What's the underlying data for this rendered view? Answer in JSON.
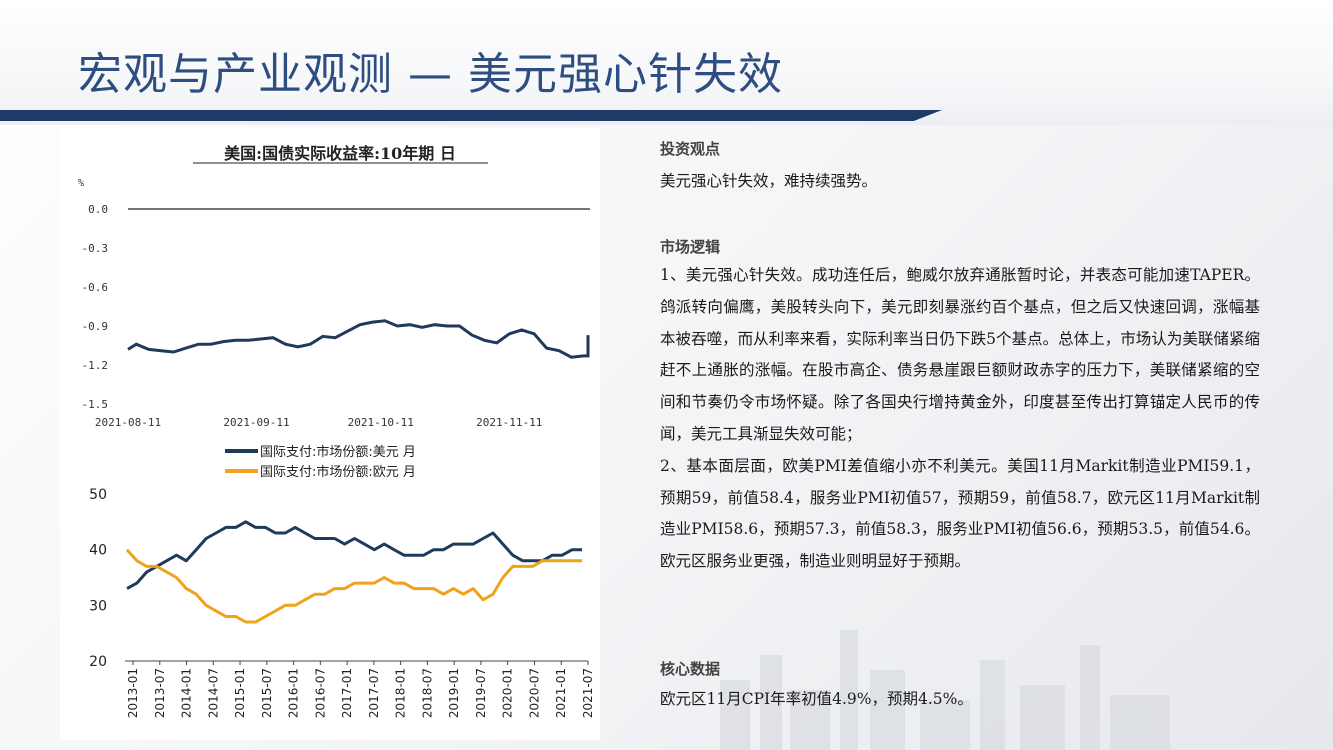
{
  "page": {
    "title": "宏观与产业观测 — 美元强心针失效"
  },
  "right": {
    "view_heading": "投资观点",
    "view_text": "美元强心针失效，难持续强势。",
    "logic_heading": "市场逻辑",
    "logic_p1": "1、美元强心针失效。成功连任后，鲍威尔放弃通胀暂时论，并表态可能加速TAPER。鸽派转向偏鹰，美股转头向下，美元即刻暴涨约百个基点，但之后又快速回调，涨幅基本被吞噬，而从利率来看，实际利率当日仍下跌5个基点。总体上，市场认为美联储紧缩赶不上通胀的涨幅。在股市高企、债务悬崖跟巨额财政赤字的压力下，美联储紧缩的空间和节奏仍令市场怀疑。除了各国央行增持黄金外，印度甚至传出打算锚定人民币的传闻，美元工具渐显失效可能；",
    "logic_p2": "2、基本面层面，欧美PMI差值缩小亦不利美元。美国11月Markit制造业PMI59.1，预期59，前值58.4，服务业PMI初值57，预期59，前值58.7，欧元区11月Markit制造业PMI58.6，预期57.3，前值58.3，服务业PMI初值56.6，预期53.5，前值54.6。欧元区服务业更强，制造业则明显好于预期。",
    "core_heading": "核心数据",
    "core_text": "欧元区11月CPI年率初值4.9%，预期4.5%。"
  },
  "colors": {
    "title": "#2e4e82",
    "rule": "#1f3a66",
    "usd_line": "#1f3a5c",
    "eur_line": "#f0a21a"
  },
  "chart_data": [
    {
      "type": "line",
      "title": "美国:国债实际收益率:10年期 日",
      "unit": "%",
      "x_ticks": [
        "2021-08-11",
        "2021-09-11",
        "2021-10-11",
        "2021-11-11"
      ],
      "y_ticks": [
        "0.0",
        "-0.3",
        "-0.6",
        "-0.9",
        "-1.2",
        "-1.5"
      ],
      "ylim": [
        -1.5,
        0.0
      ],
      "x_date_range": [
        "2021-08-11",
        "2021-11-30"
      ],
      "series": [
        {
          "points": [
            [
              "2021-08-11",
              -1.08
            ],
            [
              "2021-08-13",
              -1.04
            ],
            [
              "2021-08-16",
              -1.08
            ],
            [
              "2021-08-19",
              -1.09
            ],
            [
              "2021-08-22",
              -1.1
            ],
            [
              "2021-08-25",
              -1.07
            ],
            [
              "2021-08-28",
              -1.04
            ],
            [
              "2021-08-31",
              -1.04
            ],
            [
              "2021-09-03",
              -1.02
            ],
            [
              "2021-09-06",
              -1.01
            ],
            [
              "2021-09-09",
              -1.01
            ],
            [
              "2021-09-12",
              -1.0
            ],
            [
              "2021-09-15",
              -0.99
            ],
            [
              "2021-09-18",
              -1.04
            ],
            [
              "2021-09-21",
              -1.06
            ],
            [
              "2021-09-24",
              -1.04
            ],
            [
              "2021-09-27",
              -0.98
            ],
            [
              "2021-09-30",
              -0.99
            ],
            [
              "2021-10-03",
              -0.94
            ],
            [
              "2021-10-06",
              -0.89
            ],
            [
              "2021-10-09",
              -0.87
            ],
            [
              "2021-10-12",
              -0.86
            ],
            [
              "2021-10-15",
              -0.9
            ],
            [
              "2021-10-18",
              -0.89
            ],
            [
              "2021-10-21",
              -0.91
            ],
            [
              "2021-10-24",
              -0.89
            ],
            [
              "2021-10-27",
              -0.9
            ],
            [
              "2021-10-30",
              -0.9
            ],
            [
              "2021-11-02",
              -0.97
            ],
            [
              "2021-11-05",
              -1.01
            ],
            [
              "2021-11-08",
              -1.03
            ],
            [
              "2021-11-11",
              -0.96
            ],
            [
              "2021-11-14",
              -0.93
            ],
            [
              "2021-11-17",
              -0.96
            ],
            [
              "2021-11-20",
              -1.07
            ],
            [
              "2021-11-23",
              -1.09
            ],
            [
              "2021-11-26",
              -1.14
            ],
            [
              "2021-11-29",
              -1.13
            ],
            [
              "2021-12-02",
              -1.13
            ],
            [
              "2021-12-05",
              -1.12
            ],
            [
              "2021-12-08",
              -1.09
            ],
            [
              "2021-12-11",
              -1.13
            ],
            [
              "2021-12-14",
              -1.07
            ],
            [
              "2021-12-17",
              -1.02
            ],
            [
              "2021-12-20",
              -0.97
            ],
            [
              "2021-12-23",
              -1.05
            ],
            [
              "2021-12-26",
              -1.02
            ],
            [
              "2021-12-29",
              -1.06
            ]
          ]
        }
      ]
    },
    {
      "type": "line",
      "ylim": [
        20,
        50
      ],
      "y_ticks": [
        "20",
        "30",
        "40",
        "50"
      ],
      "x_ticks": [
        "2013-01",
        "2013-07",
        "2014-01",
        "2014-07",
        "2015-01",
        "2015-07",
        "2016-01",
        "2016-07",
        "2017-01",
        "2017-07",
        "2018-01",
        "2018-07",
        "2019-01",
        "2019-07",
        "2020-01",
        "2020-07",
        "2021-01",
        "2021-07"
      ],
      "legend_position": "top-center",
      "series": [
        {
          "name": "国际支付:市场份额:美元 月",
          "values": [
            33,
            34,
            36,
            37,
            38,
            39,
            38,
            40,
            42,
            43,
            44,
            44,
            45,
            44,
            44,
            43,
            43,
            44,
            43,
            42,
            42,
            42,
            41,
            42,
            41,
            40,
            41,
            40,
            39,
            39,
            39,
            40,
            40,
            41,
            41,
            41,
            42,
            43,
            41,
            39,
            38,
            38,
            38,
            39,
            39,
            40,
            40
          ]
        },
        {
          "name": "国际支付:市场份额:欧元 月",
          "values": [
            40,
            38,
            37,
            37,
            36,
            35,
            33,
            32,
            30,
            29,
            28,
            28,
            27,
            27,
            28,
            29,
            30,
            30,
            31,
            32,
            32,
            33,
            33,
            34,
            34,
            34,
            35,
            34,
            34,
            33,
            33,
            33,
            32,
            33,
            32,
            33,
            31,
            32,
            35,
            37,
            37,
            37,
            38,
            38,
            38,
            38,
            38
          ]
        }
      ]
    }
  ]
}
